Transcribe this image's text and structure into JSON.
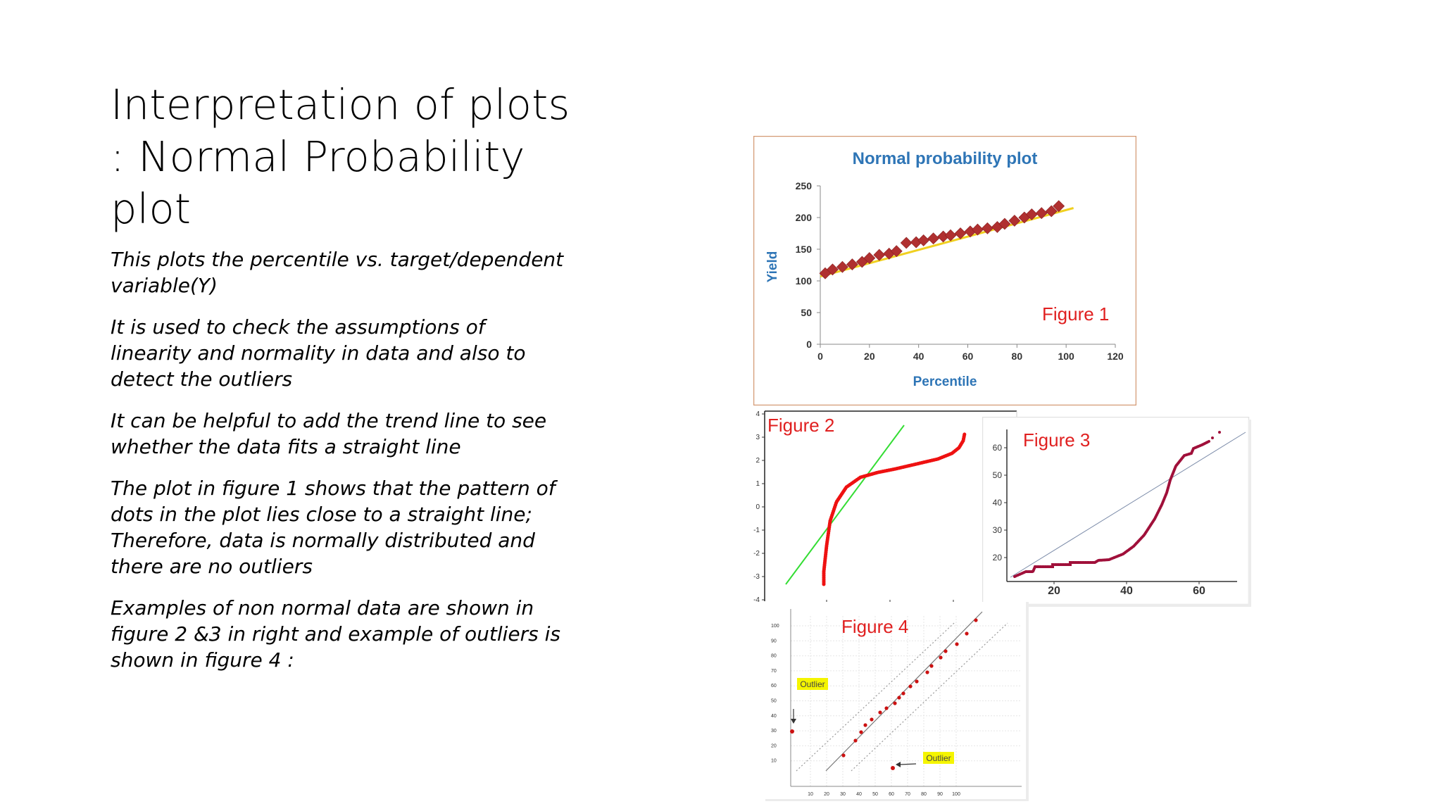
{
  "slide": {
    "title_lines": [
      "Interpretation of plots",
      ": Normal Probability",
      "plot"
    ],
    "paragraphs": [
      "This plots the percentile vs. target/dependent variable(Y)",
      "It is used to check the assumptions of linearity and normality in data and also to detect the outliers",
      "It can be helpful to add the trend line to see whether the data fits a straight line",
      "The plot in figure 1 shows that the pattern of dots in the plot lies close to a straight line; Therefore, data is normally distributed and there are no outliers",
      "Examples of non normal data are shown in figure 2 &3 in right and example of outliers is shown in figure 4 :"
    ]
  },
  "figures": {
    "fig1": {
      "label": "Figure 1",
      "title": "Normal probability plot",
      "xlabel": "Percentile",
      "ylabel": "Yield",
      "xticks": [
        "0",
        "20",
        "40",
        "60",
        "80",
        "100",
        "120"
      ],
      "yticks": [
        "0",
        "50",
        "100",
        "150",
        "200",
        "250"
      ]
    },
    "fig2": {
      "label": "Figure 2",
      "yticks": [
        "4",
        "3",
        "2",
        "1",
        "0",
        "-1",
        "-2",
        "-3",
        "-4"
      ]
    },
    "fig3": {
      "label": "Figure 3",
      "xticks": [
        "20",
        "40",
        "60"
      ],
      "yticks": [
        "60",
        "50",
        "40",
        "30",
        "20"
      ]
    },
    "fig4": {
      "label": "Figure 4",
      "outlier_label": "Outlier",
      "yticks": [
        "100",
        "90",
        "80",
        "70",
        "60",
        "50",
        "40",
        "30",
        "20",
        "10"
      ],
      "xticks": [
        "10",
        "20",
        "30",
        "40",
        "50",
        "60",
        "70",
        "80",
        "90",
        "100"
      ]
    }
  },
  "colors": {
    "accent_blue": "#2e75b6",
    "figure_label_red": "#e02020",
    "marker_dark_red": "#b03030",
    "trend_yellow": "#f0d020",
    "fig2_green": "#33dd33",
    "fig2_red": "#ee1111",
    "fig3_maroon": "#a0103a"
  },
  "chart_data": [
    {
      "type": "scatter",
      "title": "Normal probability plot",
      "xlabel": "Percentile",
      "ylabel": "Yield",
      "xlim": [
        0,
        120
      ],
      "ylim": [
        0,
        250
      ],
      "x": [
        2,
        5,
        9,
        13,
        17,
        20,
        24,
        28,
        31,
        35,
        39,
        42,
        46,
        50,
        53,
        57,
        61,
        64,
        68,
        72,
        75,
        79,
        83,
        86,
        90,
        94,
        97
      ],
      "y": [
        112,
        118,
        122,
        126,
        130,
        136,
        141,
        143,
        147,
        160,
        161,
        164,
        167,
        170,
        172,
        175,
        178,
        181,
        183,
        185,
        190,
        195,
        200,
        205,
        207,
        210,
        218
      ],
      "trendline": [
        [
          0,
          107
        ],
        [
          103,
          215
        ]
      ]
    }
  ]
}
